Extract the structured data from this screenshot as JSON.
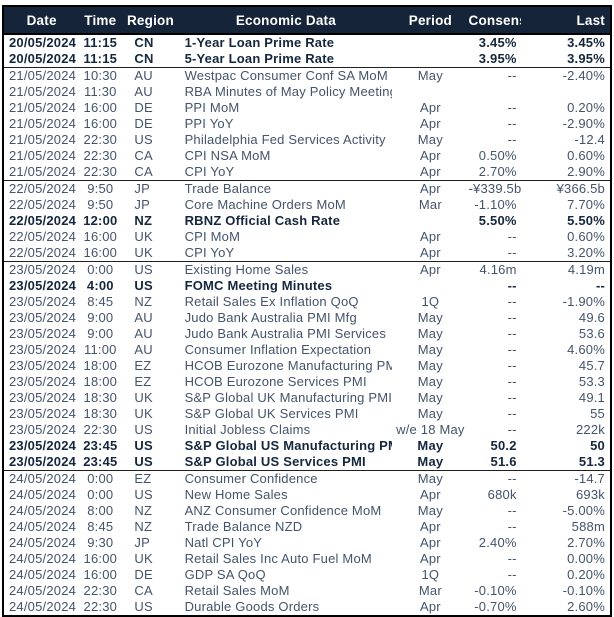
{
  "table": {
    "columns": [
      "Date",
      "Time",
      "Region",
      "Economic Data",
      "Period",
      "Consensus",
      "Last"
    ],
    "rows": [
      {
        "date": "20/05/2024",
        "time": "11:15",
        "region": "CN",
        "name": "1-Year Loan Prime Rate",
        "period": "",
        "consensus": "3.45%",
        "last": "3.45%",
        "bold": true,
        "group_start": false
      },
      {
        "date": "20/05/2024",
        "time": "11:15",
        "region": "CN",
        "name": "5-Year Loan Prime Rate",
        "period": "",
        "consensus": "3.95%",
        "last": "3.95%",
        "bold": true,
        "group_start": false
      },
      {
        "date": "21/05/2024",
        "time": "10:30",
        "region": "AU",
        "name": "Westpac Consumer Conf SA MoM",
        "period": "May",
        "consensus": "--",
        "last": "-2.40%",
        "bold": false,
        "group_start": true
      },
      {
        "date": "21/05/2024",
        "time": "11:30",
        "region": "AU",
        "name": "RBA Minutes of May Policy Meeting",
        "period": "",
        "consensus": "",
        "last": "",
        "bold": false,
        "group_start": false
      },
      {
        "date": "21/05/2024",
        "time": "16:00",
        "region": "DE",
        "name": "PPI MoM",
        "period": "Apr",
        "consensus": "--",
        "last": "0.20%",
        "bold": false,
        "group_start": false
      },
      {
        "date": "21/05/2024",
        "time": "16:00",
        "region": "DE",
        "name": "PPI YoY",
        "period": "Apr",
        "consensus": "--",
        "last": "-2.90%",
        "bold": false,
        "group_start": false
      },
      {
        "date": "21/05/2024",
        "time": "22:30",
        "region": "US",
        "name": "Philadelphia Fed Services Activity",
        "period": "May",
        "consensus": "--",
        "last": "-12.4",
        "bold": false,
        "group_start": false
      },
      {
        "date": "21/05/2024",
        "time": "22:30",
        "region": "CA",
        "name": "CPI NSA MoM",
        "period": "Apr",
        "consensus": "0.50%",
        "last": "0.60%",
        "bold": false,
        "group_start": false
      },
      {
        "date": "21/05/2024",
        "time": "22:30",
        "region": "CA",
        "name": "CPI YoY",
        "period": "Apr",
        "consensus": "2.70%",
        "last": "2.90%",
        "bold": false,
        "group_start": false
      },
      {
        "date": "22/05/2024",
        "time": "9:50",
        "region": "JP",
        "name": "Trade Balance",
        "period": "Apr",
        "consensus": "-¥339.5b",
        "last": "¥366.5b",
        "bold": false,
        "group_start": true
      },
      {
        "date": "22/05/2024",
        "time": "9:50",
        "region": "JP",
        "name": "Core Machine Orders MoM",
        "period": "Mar",
        "consensus": "-1.10%",
        "last": "7.70%",
        "bold": false,
        "group_start": false
      },
      {
        "date": "22/05/2024",
        "time": "12:00",
        "region": "NZ",
        "name": "RBNZ Official Cash Rate",
        "period": "",
        "consensus": "5.50%",
        "last": "5.50%",
        "bold": true,
        "group_start": false
      },
      {
        "date": "22/05/2024",
        "time": "16:00",
        "region": "UK",
        "name": "CPI MoM",
        "period": "Apr",
        "consensus": "--",
        "last": "0.60%",
        "bold": false,
        "group_start": false
      },
      {
        "date": "22/05/2024",
        "time": "16:00",
        "region": "UK",
        "name": "CPI YoY",
        "period": "Apr",
        "consensus": "--",
        "last": "3.20%",
        "bold": false,
        "group_start": false
      },
      {
        "date": "23/05/2024",
        "time": "0:00",
        "region": "US",
        "name": "Existing Home Sales",
        "period": "Apr",
        "consensus": "4.16m",
        "last": "4.19m",
        "bold": false,
        "group_start": true
      },
      {
        "date": "23/05/2024",
        "time": "4:00",
        "region": "US",
        "name": "FOMC Meeting Minutes",
        "period": "",
        "consensus": "--",
        "last": "--",
        "bold": true,
        "group_start": false
      },
      {
        "date": "23/05/2024",
        "time": "8:45",
        "region": "NZ",
        "name": "Retail Sales Ex Inflation QoQ",
        "period": "1Q",
        "consensus": "--",
        "last": "-1.90%",
        "bold": false,
        "group_start": false
      },
      {
        "date": "23/05/2024",
        "time": "9:00",
        "region": "AU",
        "name": "Judo Bank Australia PMI Mfg",
        "period": "May",
        "consensus": "--",
        "last": "49.6",
        "bold": false,
        "group_start": false
      },
      {
        "date": "23/05/2024",
        "time": "9:00",
        "region": "AU",
        "name": "Judo Bank Australia PMI Services",
        "period": "May",
        "consensus": "--",
        "last": "53.6",
        "bold": false,
        "group_start": false
      },
      {
        "date": "23/05/2024",
        "time": "11:00",
        "region": "AU",
        "name": "Consumer Inflation Expectation",
        "period": "May",
        "consensus": "--",
        "last": "4.60%",
        "bold": false,
        "group_start": false
      },
      {
        "date": "23/05/2024",
        "time": "18:00",
        "region": "EZ",
        "name": "HCOB Eurozone Manufacturing PMI",
        "period": "May",
        "consensus": "--",
        "last": "45.7",
        "bold": false,
        "group_start": false
      },
      {
        "date": "23/05/2024",
        "time": "18:00",
        "region": "EZ",
        "name": "HCOB Eurozone Services PMI",
        "period": "May",
        "consensus": "--",
        "last": "53.3",
        "bold": false,
        "group_start": false
      },
      {
        "date": "23/05/2024",
        "time": "18:30",
        "region": "UK",
        "name": "S&P Global UK Manufacturing PMI",
        "period": "May",
        "consensus": "--",
        "last": "49.1",
        "bold": false,
        "group_start": false
      },
      {
        "date": "23/05/2024",
        "time": "18:30",
        "region": "UK",
        "name": "S&P Global UK Services PMI",
        "period": "May",
        "consensus": "--",
        "last": "55",
        "bold": false,
        "group_start": false
      },
      {
        "date": "23/05/2024",
        "time": "22:30",
        "region": "US",
        "name": "Initial Jobless Claims",
        "period": "w/e 18 May",
        "consensus": "--",
        "last": "222k",
        "bold": false,
        "group_start": false
      },
      {
        "date": "23/05/2024",
        "time": "23:45",
        "region": "US",
        "name": "S&P Global US Manufacturing PMI",
        "period": "May",
        "consensus": "50.2",
        "last": "50",
        "bold": true,
        "group_start": false
      },
      {
        "date": "23/05/2024",
        "time": "23:45",
        "region": "US",
        "name": "S&P Global US Services PMI",
        "period": "May",
        "consensus": "51.6",
        "last": "51.3",
        "bold": true,
        "group_start": false
      },
      {
        "date": "24/05/2024",
        "time": "0:00",
        "region": "EZ",
        "name": "Consumer Confidence",
        "period": "May",
        "consensus": "--",
        "last": "-14.7",
        "bold": false,
        "group_start": true
      },
      {
        "date": "24/05/2024",
        "time": "0:00",
        "region": "US",
        "name": "New Home Sales",
        "period": "Apr",
        "consensus": "680k",
        "last": "693k",
        "bold": false,
        "group_start": false
      },
      {
        "date": "24/05/2024",
        "time": "8:00",
        "region": "NZ",
        "name": "ANZ Consumer Confidence MoM",
        "period": "May",
        "consensus": "--",
        "last": "-5.00%",
        "bold": false,
        "group_start": false
      },
      {
        "date": "24/05/2024",
        "time": "8:45",
        "region": "NZ",
        "name": "Trade Balance NZD",
        "period": "Apr",
        "consensus": "--",
        "last": "588m",
        "bold": false,
        "group_start": false
      },
      {
        "date": "24/05/2024",
        "time": "9:30",
        "region": "JP",
        "name": "Natl CPI YoY",
        "period": "Apr",
        "consensus": "2.40%",
        "last": "2.70%",
        "bold": false,
        "group_start": false
      },
      {
        "date": "24/05/2024",
        "time": "16:00",
        "region": "UK",
        "name": "Retail Sales Inc Auto Fuel MoM",
        "period": "Apr",
        "consensus": "--",
        "last": "0.00%",
        "bold": false,
        "group_start": false
      },
      {
        "date": "24/05/2024",
        "time": "16:00",
        "region": "DE",
        "name": "GDP SA QoQ",
        "period": "1Q",
        "consensus": "--",
        "last": "0.20%",
        "bold": false,
        "group_start": false
      },
      {
        "date": "24/05/2024",
        "time": "22:30",
        "region": "CA",
        "name": "Retail Sales MoM",
        "period": "Mar",
        "consensus": "-0.10%",
        "last": "-0.10%",
        "bold": false,
        "group_start": false
      },
      {
        "date": "24/05/2024",
        "time": "22:30",
        "region": "US",
        "name": "Durable Goods Orders",
        "period": "Apr",
        "consensus": "-0.70%",
        "last": "2.60%",
        "bold": false,
        "group_start": false
      }
    ]
  },
  "colors": {
    "header_bg": "#152438",
    "header_text": "#ffffff",
    "bold_row_text": "#15273d",
    "regular_row_text": "#44546a",
    "outer_border": "#000000",
    "group_divider": "#1f1f1f"
  }
}
